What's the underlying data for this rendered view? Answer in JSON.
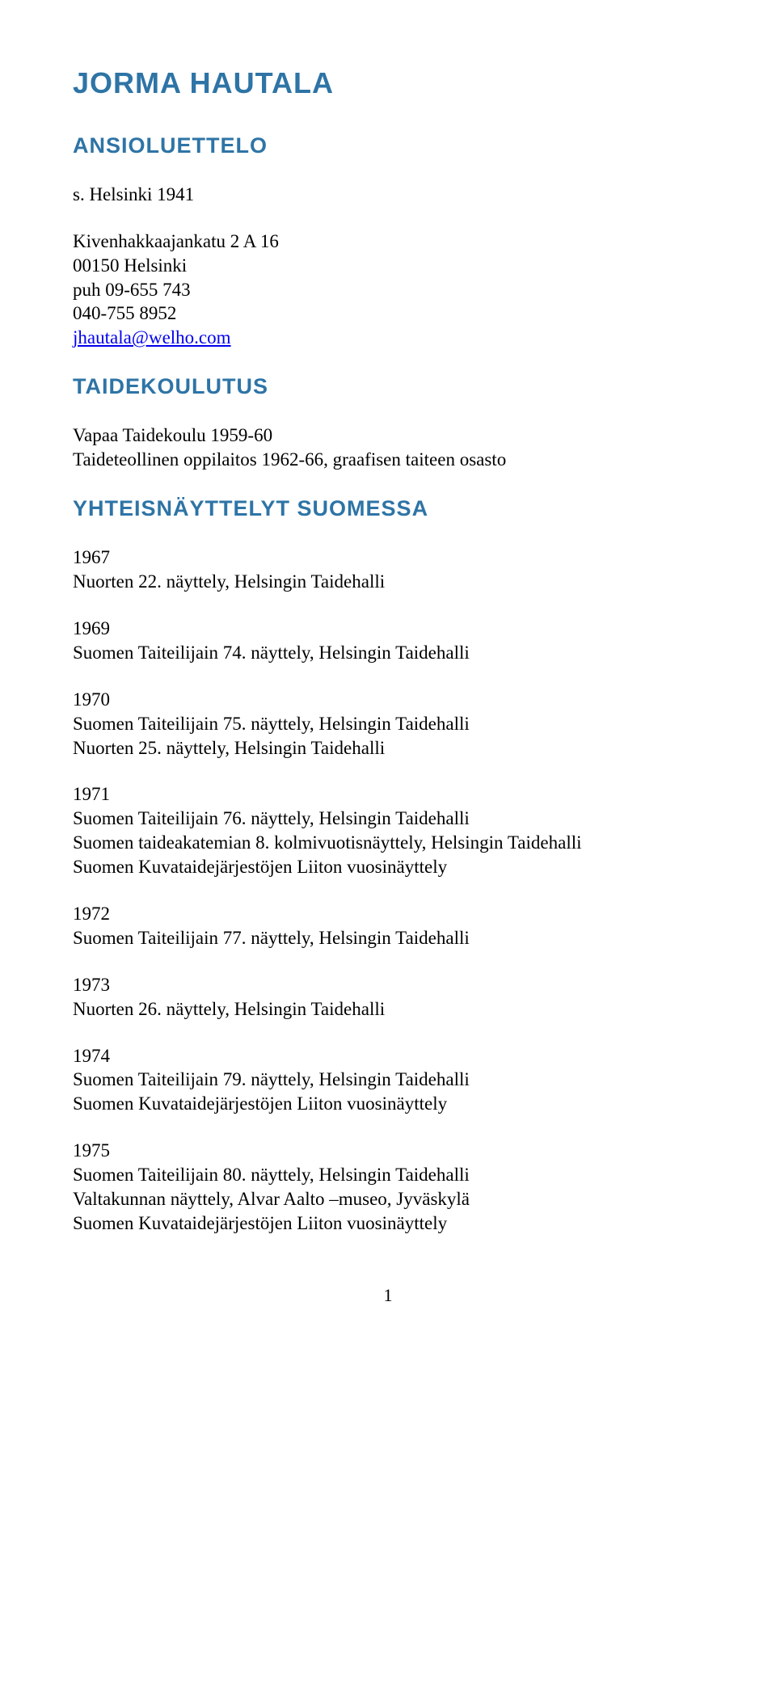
{
  "title": "JORMA HAUTALA",
  "cv_heading": "ANSIOLUETTELO",
  "bio": {
    "born": "s. Helsinki 1941",
    "address1": "Kivenhakkaajankatu 2 A 16",
    "address2": "00150 Helsinki",
    "phone1": "puh 09-655 743",
    "phone2": "040-755 8952",
    "email": "jhautala@welho.com"
  },
  "education_heading": "TAIDEKOULUTUS",
  "education": {
    "line1": "Vapaa Taidekoulu 1959-60",
    "line2": "Taideteollinen oppilaitos 1962-66, graafisen taiteen osasto"
  },
  "group_heading": "YHTEISNÄYTTELYT SUOMESSA",
  "entries": [
    {
      "year": "1967",
      "lines": [
        "Nuorten 22. näyttely, Helsingin Taidehalli"
      ]
    },
    {
      "year": "1969",
      "lines": [
        "Suomen Taiteilijain 74. näyttely, Helsingin Taidehalli"
      ]
    },
    {
      "year": "1970",
      "lines": [
        "Suomen Taiteilijain 75. näyttely, Helsingin Taidehalli",
        "Nuorten 25. näyttely, Helsingin Taidehalli"
      ]
    },
    {
      "year": "1971",
      "lines": [
        "Suomen Taiteilijain 76. näyttely, Helsingin Taidehalli",
        "Suomen taideakatemian 8. kolmivuotisnäyttely, Helsingin Taidehalli",
        "Suomen Kuvataidejärjestöjen Liiton vuosinäyttely"
      ]
    },
    {
      "year": "1972",
      "lines": [
        "Suomen Taiteilijain 77. näyttely, Helsingin Taidehalli"
      ]
    },
    {
      "year": "1973",
      "lines": [
        "Nuorten 26. näyttely, Helsingin Taidehalli"
      ]
    },
    {
      "year": "1974",
      "lines": [
        "Suomen Taiteilijain 79. näyttely, Helsingin Taidehalli",
        "Suomen Kuvataidejärjestöjen Liiton vuosinäyttely"
      ]
    },
    {
      "year": "1975",
      "lines": [
        "Suomen Taiteilijain 80. näyttely, Helsingin Taidehalli",
        "Valtakunnan näyttely, Alvar Aalto –museo,  Jyväskylä",
        "Suomen Kuvataidejärjestöjen Liiton vuosinäyttely"
      ]
    }
  ],
  "page_number": "1"
}
